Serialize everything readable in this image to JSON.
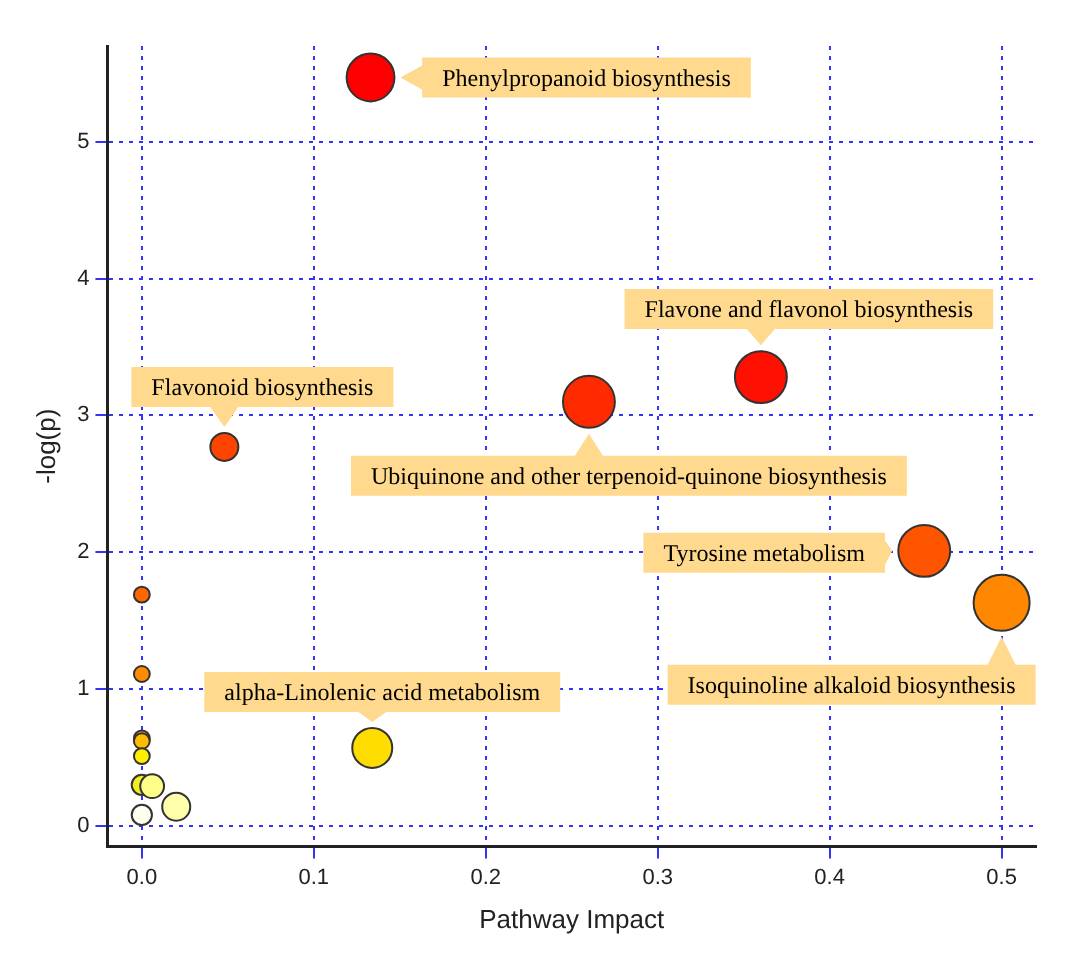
{
  "chart_data": {
    "type": "bubble",
    "xlabel": "Pathway Impact",
    "ylabel": "-log(p)",
    "x": [
      0.133,
      0.36,
      0.048,
      0.26,
      0.455,
      0.5,
      0.134,
      0,
      0,
      0,
      0,
      0,
      0,
      0.006,
      0.02,
      0
    ],
    "values": [
      5.47,
      3.28,
      2.77,
      3.1,
      2.01,
      1.63,
      0.57,
      1.69,
      1.11,
      0.64,
      0.62,
      0.51,
      0.3,
      0.29,
      0.14,
      0.08
    ],
    "sizes": [
      0.73,
      0.86,
      0.25,
      0.86,
      0.86,
      1,
      0.51,
      0.08,
      0.08,
      0.08,
      0.08,
      0.08,
      0.13,
      0.18,
      0.25,
      0.13
    ],
    "colors": [
      "#ff0000",
      "#ff1000",
      "#ff4400",
      "#ff2a00",
      "#ff5500",
      "#ff8800",
      "#ffdd00",
      "#ff6600",
      "#ff8c00",
      "#ffaa00",
      "#ffbb00",
      "#ffee00",
      "#eeee22",
      "#ffff88",
      "#ffffaa",
      "#fffff0"
    ],
    "xlim": [
      -0.02,
      0.52
    ],
    "xticks": [
      {
        "value": 0,
        "label": "0.0"
      },
      0.1,
      0.2,
      0.3,
      0.4,
      0.5
    ],
    "ylim": [
      -0.15,
      5.7
    ],
    "yticks": [
      0,
      1,
      2,
      3,
      4,
      5
    ],
    "grid": true,
    "legend": false,
    "annotations": [
      {
        "text": "Phenylpropanoid biosynthesis",
        "x": 0.133,
        "y": 5.47
      },
      {
        "text": "Flavone and flavonol biosynthesis",
        "x": 0.36,
        "y": 3.28
      },
      {
        "text": "Flavonoid biosynthesis",
        "x": 0.048,
        "y": 2.77
      },
      {
        "text": "Ubiquinone and other terpenoid-quinone biosynthesis",
        "x": 0.26,
        "y": 3.1
      },
      {
        "text": "Tyrosine metabolism",
        "x": 0.455,
        "y": 2.01
      },
      {
        "text": "Isoquinoline alkaloid biosynthesis",
        "x": 0.5,
        "y": 1.63
      },
      {
        "text": "alpha-Linolenic acid metabolism",
        "x": 0.134,
        "y": 0.57
      }
    ]
  }
}
